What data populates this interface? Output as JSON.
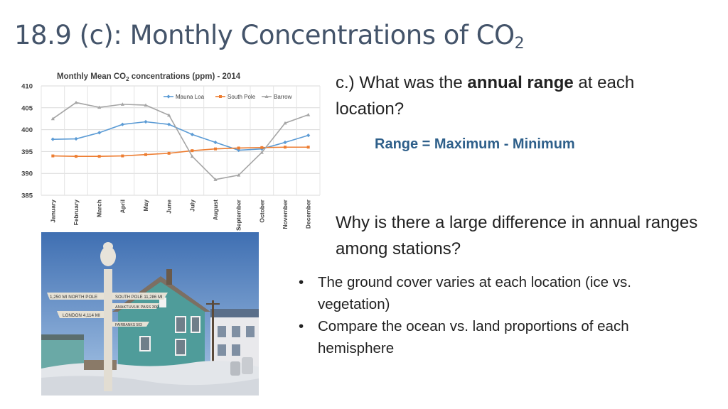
{
  "slide": {
    "title_main": "18.9 (c): Monthly Concentrations of CO",
    "title_sub": "2"
  },
  "question": {
    "before": "c.) What was the ",
    "bold": "annual range",
    "after": " at each location?"
  },
  "formula": "Range = Maximum - Minimum",
  "question2": "Why is there a large difference in annual ranges among stations?",
  "bullets": [
    "The ground cover varies at each location (ice vs. vegetation)",
    "Compare the ocean vs. land proportions of each hemisphere"
  ],
  "photo": {
    "signs": [
      "1,250 MI NORTH POLE",
      "SOUTH POLE 11,286 MI",
      "ANAKTUVUK PASS 300",
      "LONDON 4,114 MI",
      "FAIRBANKS 503"
    ]
  },
  "chart_data": {
    "type": "line",
    "title_prefix": "Monthly Mean CO",
    "title_sub": "2",
    "title_suffix": " concentrations (ppm) - 2014",
    "categories": [
      "January",
      "February",
      "March",
      "April",
      "May",
      "June",
      "July",
      "August",
      "September",
      "October",
      "November",
      "December"
    ],
    "ylim": [
      385,
      410
    ],
    "yticks": [
      385,
      390,
      395,
      400,
      405,
      410
    ],
    "legend_position": "top-right",
    "grid": true,
    "series": [
      {
        "name": "Mauna Loa",
        "color": "#5b9bd5",
        "marker": "diamond",
        "values": [
          397.8,
          397.9,
          399.3,
          401.2,
          401.8,
          401.2,
          398.9,
          397.1,
          395.3,
          395.6,
          397.1,
          398.7
        ]
      },
      {
        "name": "South Pole",
        "color": "#ed7d31",
        "marker": "square",
        "values": [
          394.0,
          393.9,
          393.9,
          394.0,
          394.3,
          394.6,
          395.2,
          395.6,
          395.8,
          395.9,
          396.0,
          396.0
        ]
      },
      {
        "name": "Barrow",
        "color": "#a5a5a5",
        "marker": "triangle",
        "values": [
          402.5,
          406.2,
          405.1,
          405.8,
          405.6,
          403.3,
          393.9,
          388.6,
          389.6,
          394.8,
          401.5,
          403.4
        ]
      }
    ]
  }
}
